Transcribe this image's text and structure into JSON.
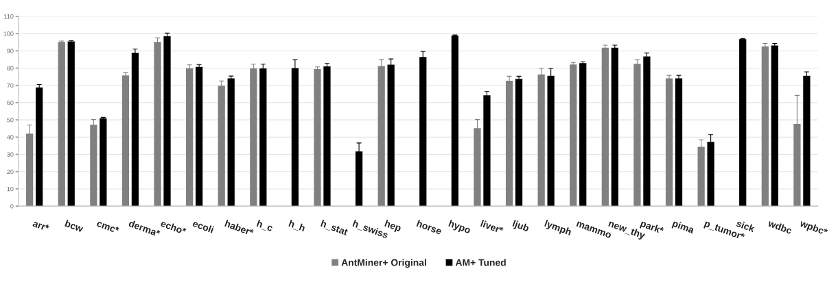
{
  "chart_data": {
    "type": "bar",
    "categories": [
      "arr*",
      "bcw",
      "cmc*",
      "derma*",
      "echo*",
      "ecoli",
      "haber*",
      "h_c",
      "h_h",
      "h_stat",
      "h_swiss",
      "hep",
      "horse",
      "hypo",
      "liver*",
      "ljub",
      "lymph",
      "mammo",
      "new_thy",
      "park*",
      "pima",
      "p_tumor*",
      "sick",
      "wdbc",
      "wpbc*"
    ],
    "series": [
      {
        "name": "AntMiner+ Original",
        "color": "#808080",
        "values": [
          42.0,
          95.2,
          47.2,
          75.7,
          95.2,
          79.9,
          69.8,
          79.8,
          null,
          79.4,
          null,
          81.2,
          null,
          null,
          45.2,
          72.7,
          76.3,
          82.1,
          91.8,
          82.5,
          74.1,
          34.4,
          null,
          92.6,
          47.7
        ],
        "errors": [
          5.0,
          0.5,
          3.0,
          1.7,
          2.3,
          2.0,
          2.7,
          2.5,
          null,
          1.3,
          null,
          3.7,
          null,
          null,
          5.0,
          2.6,
          3.5,
          1.2,
          1.5,
          2.3,
          1.7,
          4.0,
          null,
          1.7,
          16.5
        ]
      },
      {
        "name": "AM+ Tuned",
        "color": "#000000",
        "values": [
          68.8,
          95.5,
          50.9,
          88.9,
          98.5,
          80.7,
          74.1,
          79.8,
          80.0,
          81.0,
          31.7,
          82.0,
          86.5,
          98.9,
          64.2,
          73.8,
          75.5,
          82.9,
          91.8,
          86.8,
          74.1,
          37.3,
          96.8,
          93.1,
          75.5
        ],
        "errors": [
          1.7,
          0.4,
          0.6,
          2.1,
          1.8,
          1.4,
          1.3,
          2.5,
          4.8,
          1.7,
          4.9,
          3.3,
          3.1,
          0.3,
          2.2,
          1.5,
          4.3,
          0.8,
          1.5,
          2.0,
          1.7,
          4.1,
          0.3,
          1.2,
          2.3
        ]
      }
    ],
    "ylim": [
      0,
      110
    ],
    "yticks": [
      0,
      10,
      20,
      30,
      40,
      50,
      60,
      70,
      80,
      90,
      100,
      110
    ],
    "grid": "y",
    "legend": "bottom"
  }
}
